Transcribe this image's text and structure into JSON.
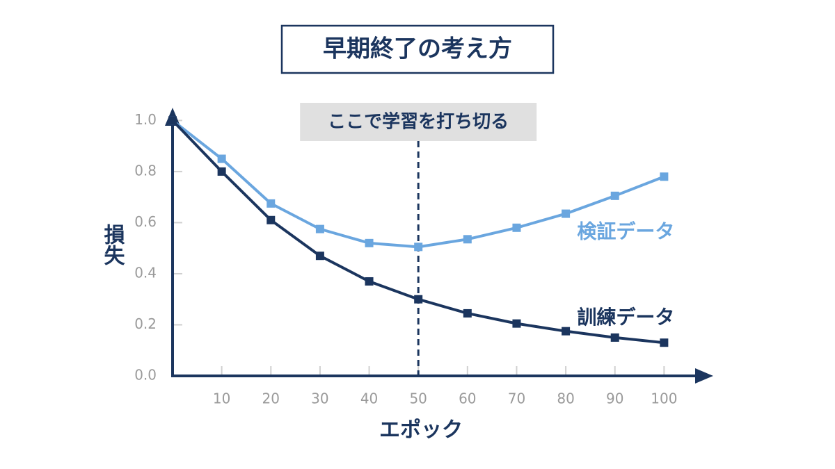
{
  "chart_data": {
    "type": "line",
    "title": "早期終了の考え方",
    "x_label": "エポック",
    "y_label": "損失",
    "x": [
      0,
      10,
      20,
      30,
      40,
      50,
      60,
      70,
      80,
      90,
      100
    ],
    "series": [
      {
        "name": "検証データ",
        "color": "#6aa6df",
        "values": [
          1.0,
          0.85,
          0.675,
          0.575,
          0.52,
          0.505,
          0.535,
          0.58,
          0.635,
          0.705,
          0.78
        ]
      },
      {
        "name": "訓練データ",
        "color": "#1b355e",
        "values": [
          1.0,
          0.8,
          0.61,
          0.47,
          0.37,
          0.3,
          0.245,
          0.205,
          0.175,
          0.15,
          0.13
        ]
      }
    ],
    "xlim": [
      0,
      110
    ],
    "ylim": [
      0,
      1.05
    ],
    "xticks": [
      10,
      20,
      30,
      40,
      50,
      60,
      70,
      80,
      90,
      100
    ],
    "yticks": [
      {
        "value": 0,
        "label": "0.0"
      },
      0.2,
      0.4,
      0.6,
      0.8,
      {
        "value": 1,
        "label": "1.0"
      }
    ],
    "annotation": {
      "text": "ここで学習を打ち切る",
      "x": 50
    }
  }
}
